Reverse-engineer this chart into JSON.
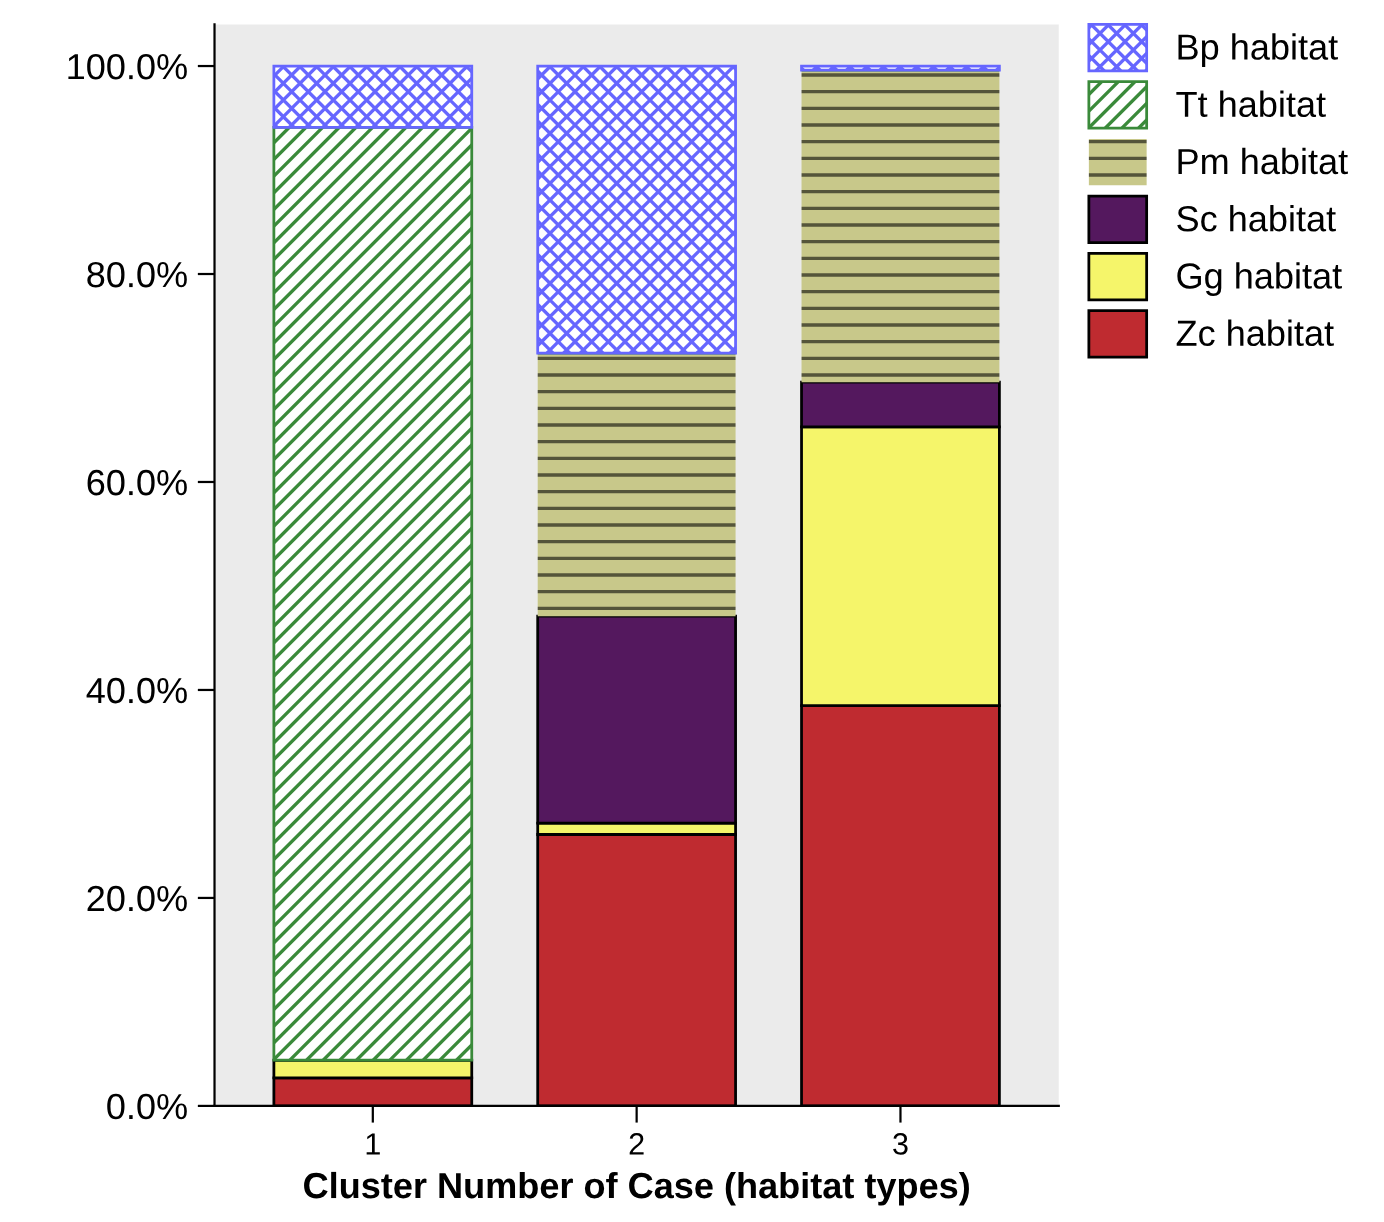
{
  "chart_data": {
    "type": "bar",
    "stacked": true,
    "xlabel": "Cluster Number of Case (habitat types)",
    "categories": [
      "1",
      "2",
      "3"
    ],
    "series": [
      {
        "name": "Zc habitat",
        "color": "#bf2b30",
        "values": [
          2.7,
          26.1,
          38.5
        ]
      },
      {
        "name": "Gg habitat",
        "color": "#f5f56a",
        "values": [
          1.7,
          1.1,
          26.8
        ]
      },
      {
        "name": "Sc habitat",
        "color": "#54185e",
        "values": [
          0,
          19.9,
          4.3
        ]
      },
      {
        "name": "Pm habitat",
        "color": "#c8c88a",
        "values": [
          0,
          25.3,
          30.0
        ]
      },
      {
        "name": "Tt habitat",
        "color": "#3a8a3a",
        "values": [
          89.7,
          0,
          0
        ]
      },
      {
        "name": "Bp habitat",
        "color": "#6666ff",
        "values": [
          5.9,
          27.6,
          0.4
        ]
      }
    ],
    "ylim": [
      0,
      104
    ],
    "yticks": [
      {
        "value": 0,
        "label": "0.0%"
      },
      {
        "value": 20,
        "label": "20.0%"
      },
      {
        "value": 40,
        "label": "40.0%"
      },
      {
        "value": 60,
        "label": "60.0%"
      },
      {
        "value": 80,
        "label": "80.0%"
      },
      {
        "value": 100,
        "label": "100.0%"
      }
    ],
    "grid": false,
    "legend": "top right"
  }
}
